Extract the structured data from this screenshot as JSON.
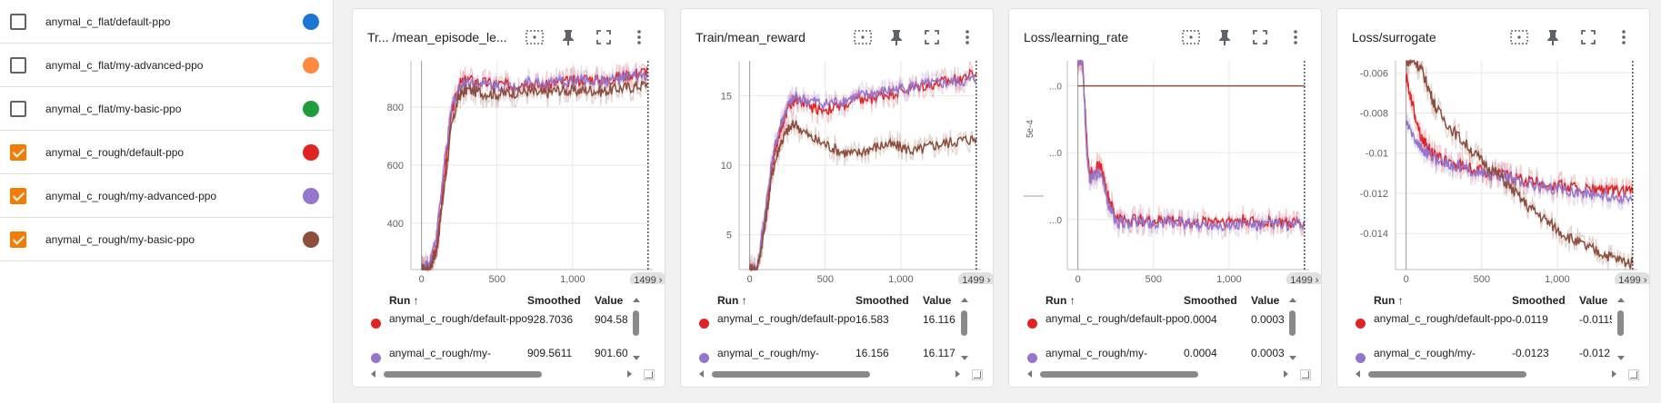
{
  "sidebar": {
    "runs": [
      {
        "name": "anymal_c_flat/default-ppo",
        "checked": false,
        "color": "#1976d2"
      },
      {
        "name": "anymal_c_flat/my-advanced-ppo",
        "checked": false,
        "color": "#ff8a3d"
      },
      {
        "name": "anymal_c_flat/my-basic-ppo",
        "checked": false,
        "color": "#1e9e3a"
      },
      {
        "name": "anymal_c_rough/default-ppo",
        "checked": true,
        "color": "#e02424"
      },
      {
        "name": "anymal_c_rough/my-advanced-ppo",
        "checked": true,
        "color": "#9575cd"
      },
      {
        "name": "anymal_c_rough/my-basic-ppo",
        "checked": true,
        "color": "#8d4e3d"
      }
    ]
  },
  "colors": {
    "accent": "#f57c00",
    "default_ppo": "#e02424",
    "my_advanced_ppo": "#9575cd",
    "my_basic_ppo": "#8d4e3d"
  },
  "table": {
    "col_run": "Run ↑",
    "col_smoothed": "Smoothed",
    "col_value": "Value"
  },
  "x_step_badge": "1499 ›",
  "cards": [
    {
      "title": "Tr... /mean_episode_le...",
      "rows": [
        {
          "run": "anymal_c_rough/default-ppo",
          "smoothed": "928.7036",
          "value": "904.58"
        },
        {
          "run": "anymal_c_rough/my-",
          "smoothed": "909.5611",
          "value": "901.60"
        }
      ]
    },
    {
      "title": "Train/mean_reward",
      "rows": [
        {
          "run": "anymal_c_rough/default-ppo",
          "smoothed": "16.583",
          "value": "16.116"
        },
        {
          "run": "anymal_c_rough/my-",
          "smoothed": "16.156",
          "value": "16.117"
        }
      ]
    },
    {
      "title": "Loss/learning_rate",
      "rows": [
        {
          "run": "anymal_c_rough/default-ppo",
          "smoothed": "0.0004",
          "value": "0.0003"
        },
        {
          "run": "anymal_c_rough/my-",
          "smoothed": "0.0004",
          "value": "0.0003"
        }
      ]
    },
    {
      "title": "Loss/surrogate",
      "rows": [
        {
          "run": "anymal_c_rough/default-ppo",
          "smoothed": "-0.0119",
          "value": "-0.0115"
        },
        {
          "run": "anymal_c_rough/my-",
          "smoothed": "-0.0123",
          "value": "-0.012"
        }
      ]
    }
  ],
  "chart_data": [
    {
      "type": "line",
      "title": "Tr... /mean_episode_le...",
      "xlim": [
        -70,
        1530
      ],
      "ylim": [
        240,
        960
      ],
      "x_ticks": [
        "0",
        "500",
        "1,000"
      ],
      "y_ticks": [
        "400",
        "600",
        "800"
      ],
      "x_tick_values": [
        0,
        500,
        1000
      ],
      "y_tick_values": [
        400,
        600,
        800
      ],
      "series": [
        {
          "name": "anymal_c_rough/default-ppo",
          "color": "#e02424",
          "x": [
            0,
            50,
            100,
            150,
            200,
            250,
            300,
            400,
            500,
            600,
            700,
            800,
            900,
            1000,
            1100,
            1200,
            1300,
            1400,
            1499
          ],
          "y": [
            240,
            240,
            320,
            560,
            780,
            880,
            895,
            885,
            880,
            875,
            890,
            870,
            885,
            890,
            900,
            890,
            905,
            915,
            928
          ]
        },
        {
          "name": "anymal_c_rough/my-advanced-ppo",
          "color": "#9575cd",
          "x": [
            0,
            50,
            100,
            150,
            200,
            250,
            300,
            400,
            500,
            600,
            700,
            800,
            900,
            1000,
            1100,
            1200,
            1300,
            1400,
            1499
          ],
          "y": [
            240,
            260,
            360,
            600,
            800,
            870,
            890,
            880,
            875,
            870,
            885,
            880,
            885,
            890,
            895,
            890,
            895,
            905,
            910
          ]
        },
        {
          "name": "anymal_c_rough/my-basic-ppo",
          "color": "#8d4e3d",
          "x": [
            0,
            50,
            100,
            150,
            200,
            250,
            300,
            400,
            500,
            600,
            700,
            800,
            900,
            1000,
            1100,
            1200,
            1300,
            1400,
            1499
          ],
          "y": [
            240,
            240,
            300,
            520,
            740,
            840,
            860,
            850,
            845,
            850,
            855,
            845,
            860,
            855,
            860,
            855,
            865,
            870,
            880
          ]
        }
      ]
    },
    {
      "type": "line",
      "title": "Train/mean_reward",
      "xlim": [
        -70,
        1530
      ],
      "ylim": [
        2.5,
        17.5
      ],
      "x_ticks": [
        "0",
        "500",
        "1,000"
      ],
      "y_ticks": [
        "5",
        "10",
        "15"
      ],
      "x_tick_values": [
        0,
        500,
        1000
      ],
      "y_tick_values": [
        5,
        10,
        15
      ],
      "series": [
        {
          "name": "anymal_c_rough/default-ppo",
          "color": "#e02424",
          "x": [
            0,
            50,
            100,
            150,
            200,
            250,
            300,
            400,
            500,
            600,
            700,
            800,
            900,
            1000,
            1100,
            1200,
            1300,
            1400,
            1499
          ],
          "y": [
            2.5,
            2.5,
            6,
            10,
            12.5,
            14,
            14.8,
            14.2,
            14.0,
            14.2,
            14.6,
            14.8,
            15.1,
            15.3,
            15.6,
            15.8,
            16.0,
            16.3,
            16.58
          ]
        },
        {
          "name": "anymal_c_rough/my-advanced-ppo",
          "color": "#9575cd",
          "x": [
            0,
            50,
            100,
            150,
            200,
            250,
            300,
            400,
            500,
            600,
            700,
            800,
            900,
            1000,
            1100,
            1200,
            1300,
            1400,
            1499
          ],
          "y": [
            2.5,
            2.5,
            6.5,
            10.5,
            12.8,
            14.2,
            14.9,
            14.6,
            14.4,
            14.6,
            14.9,
            15.1,
            15.3,
            15.5,
            15.7,
            15.8,
            15.9,
            16.0,
            16.16
          ]
        },
        {
          "name": "anymal_c_rough/my-basic-ppo",
          "color": "#8d4e3d",
          "x": [
            0,
            50,
            100,
            150,
            200,
            250,
            300,
            400,
            500,
            600,
            700,
            800,
            900,
            1000,
            1100,
            1200,
            1300,
            1400,
            1499
          ],
          "y": [
            2.5,
            2.5,
            5.5,
            9.5,
            11.5,
            12.5,
            13.0,
            12.0,
            11.5,
            11.0,
            10.8,
            11.2,
            11.5,
            11.3,
            11.0,
            11.4,
            11.6,
            11.8,
            11.9
          ]
        }
      ]
    },
    {
      "type": "line",
      "title": "Loss/learning_rate",
      "xlim": [
        -70,
        1530
      ],
      "ylim": [
        0,
        1
      ],
      "y_axis_label": "5e-4",
      "x_ticks": [
        "0",
        "500",
        "1,000"
      ],
      "y_ticks": [
        "...0",
        "...0",
        "...0"
      ],
      "x_tick_values": [
        0,
        500,
        1000
      ],
      "series": [
        {
          "name": "anymal_c_rough/default-ppo",
          "color": "#e02424",
          "x": [
            0,
            30,
            60,
            80,
            100,
            150,
            200,
            250,
            300,
            400,
            500,
            600,
            700,
            800,
            900,
            1000,
            1100,
            1200,
            1300,
            1400,
            1499
          ],
          "y": [
            1,
            1,
            0.6,
            0.45,
            0.48,
            0.5,
            0.35,
            0.25,
            0.24,
            0.24,
            0.23,
            0.24,
            0.23,
            0.22,
            0.24,
            0.23,
            0.24,
            0.22,
            0.23,
            0.22,
            0.23
          ]
        },
        {
          "name": "anymal_c_rough/my-advanced-ppo",
          "color": "#9575cd",
          "x": [
            0,
            30,
            60,
            80,
            100,
            150,
            200,
            250,
            300,
            400,
            500,
            600,
            700,
            800,
            900,
            1000,
            1100,
            1200,
            1300,
            1400,
            1499
          ],
          "y": [
            1,
            1,
            0.55,
            0.42,
            0.46,
            0.45,
            0.32,
            0.23,
            0.22,
            0.23,
            0.22,
            0.23,
            0.22,
            0.21,
            0.22,
            0.21,
            0.22,
            0.21,
            0.22,
            0.21,
            0.22
          ]
        },
        {
          "name": "anymal_c_rough/my-basic-ppo",
          "color": "#8d4e3d",
          "x": [
            0,
            1499
          ],
          "y": [
            0.88,
            0.88
          ]
        }
      ]
    },
    {
      "type": "line",
      "title": "Loss/surrogate",
      "xlim": [
        -70,
        1530
      ],
      "ylim": [
        -0.0158,
        -0.0054
      ],
      "x_ticks": [
        "0",
        "500",
        "1,000"
      ],
      "y_ticks": [
        "-0.006",
        "-0.008",
        "-0.01",
        "-0.012",
        "-0.014"
      ],
      "x_tick_values": [
        0,
        500,
        1000
      ],
      "y_tick_values": [
        -0.006,
        -0.008,
        -0.01,
        -0.012,
        -0.014
      ],
      "series": [
        {
          "name": "anymal_c_rough/default-ppo",
          "color": "#e02424",
          "x": [
            0,
            50,
            100,
            150,
            200,
            300,
            400,
            500,
            600,
            700,
            800,
            900,
            1000,
            1100,
            1200,
            1300,
            1400,
            1499
          ],
          "y": [
            -0.0062,
            -0.0078,
            -0.0092,
            -0.0098,
            -0.0102,
            -0.0105,
            -0.0107,
            -0.0109,
            -0.011,
            -0.0112,
            -0.0114,
            -0.0115,
            -0.0116,
            -0.0117,
            -0.0118,
            -0.0118,
            -0.0119,
            -0.0119
          ]
        },
        {
          "name": "anymal_c_rough/my-advanced-ppo",
          "color": "#9575cd",
          "x": [
            0,
            50,
            100,
            150,
            200,
            300,
            400,
            500,
            600,
            700,
            800,
            900,
            1000,
            1100,
            1200,
            1300,
            1400,
            1499
          ],
          "y": [
            -0.0085,
            -0.0092,
            -0.0098,
            -0.0101,
            -0.0103,
            -0.0106,
            -0.0108,
            -0.011,
            -0.0111,
            -0.0113,
            -0.0115,
            -0.0117,
            -0.0118,
            -0.0119,
            -0.012,
            -0.0121,
            -0.0122,
            -0.0123
          ]
        },
        {
          "name": "anymal_c_rough/my-basic-ppo",
          "color": "#8d4e3d",
          "x": [
            0,
            50,
            100,
            150,
            200,
            300,
            400,
            500,
            600,
            700,
            800,
            900,
            1000,
            1100,
            1200,
            1300,
            1400,
            1499
          ],
          "y": [
            -0.0054,
            -0.0054,
            -0.0058,
            -0.0068,
            -0.0078,
            -0.0088,
            -0.0096,
            -0.0104,
            -0.011,
            -0.0118,
            -0.0126,
            -0.0132,
            -0.0138,
            -0.0143,
            -0.0147,
            -0.015,
            -0.0153,
            -0.0155
          ]
        }
      ]
    }
  ]
}
